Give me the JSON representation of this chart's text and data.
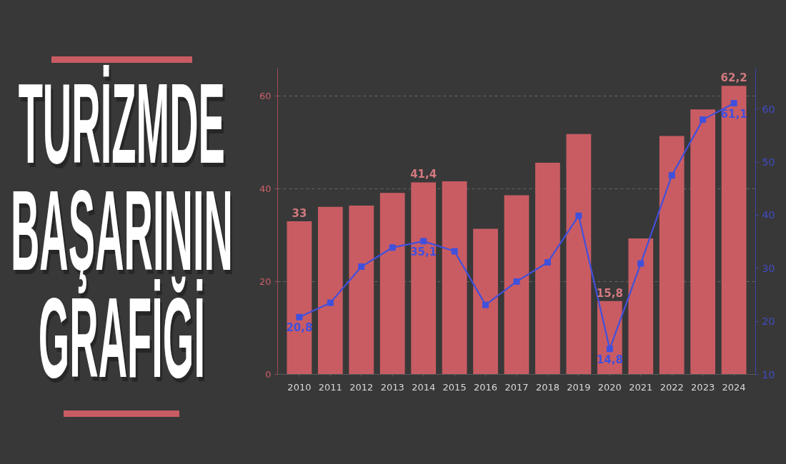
{
  "chart_data": {
    "type": "bar",
    "title": "TURİZMDE BAŞARININ GRAFİĞİ",
    "categories": [
      "2010",
      "2011",
      "2012",
      "2013",
      "2014",
      "2015",
      "2016",
      "2017",
      "2018",
      "2019",
      "2020",
      "2021",
      "2022",
      "2023",
      "2024"
    ],
    "series": [
      {
        "color": "#c95c63",
        "values": [
          33,
          36.1,
          36.4,
          39.1,
          41.4,
          41.6,
          31.4,
          38.6,
          45.6,
          51.8,
          15.8,
          29.3,
          51.4,
          57.1,
          62.2
        ],
        "value_labels": [
          "33",
          null,
          null,
          null,
          "41,4",
          null,
          null,
          null,
          null,
          null,
          "15,8",
          null,
          null,
          null,
          "62,2"
        ]
      },
      {
        "type": "line",
        "axis": "y2",
        "color": "#4150dc",
        "marker": "square",
        "values": [
          20.8,
          23.5,
          30.3,
          33.9,
          35.1,
          33.2,
          23.1,
          27.5,
          31.1,
          39.9,
          14.8,
          30.9,
          47.5,
          58.0,
          61.1
        ],
        "value_labels": [
          "20,8",
          null,
          null,
          null,
          "35,1",
          null,
          null,
          null,
          null,
          null,
          "14,8",
          null,
          null,
          null,
          "61,1"
        ]
      }
    ],
    "ylim": [
      0,
      66
    ],
    "yticks": [
      0,
      20,
      40,
      60
    ],
    "y2lim": [
      10,
      67.7
    ],
    "y2ticks": [
      10,
      20,
      30,
      40,
      50,
      60
    ],
    "grid": "y"
  }
}
